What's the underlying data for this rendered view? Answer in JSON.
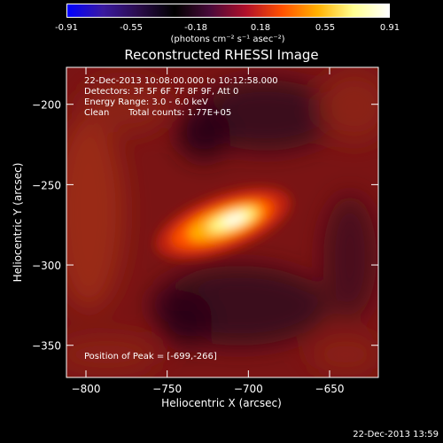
{
  "colorbar": {
    "gradient": [
      "#0000ff",
      "#3a1aa0",
      "#2a0c4a",
      "#000000",
      "#4a0a3a",
      "#b0102a",
      "#ff5000",
      "#ffb000",
      "#ffff90",
      "#ffffff"
    ],
    "ticks": [
      "-0.91",
      "-0.55",
      "-0.18",
      "0.18",
      "0.55",
      "0.91"
    ],
    "units": "(photons cm⁻² s⁻¹ asec⁻²)"
  },
  "chart_data": {
    "type": "heatmap",
    "title": "Reconstructed RHESSI Image",
    "xlabel": "Heliocentric X (arcsec)",
    "ylabel": "Heliocentric Y (arcsec)",
    "xlim": [
      -812,
      -620
    ],
    "ylim": [
      -370,
      -177
    ],
    "xticks": [
      -800,
      -750,
      -700,
      -650
    ],
    "yticks": [
      -200,
      -250,
      -300,
      -350
    ],
    "peak_position": [
      -699,
      -266
    ],
    "annotations": {
      "time": "22-Dec-2013 10:08:00.000 to 10:12:58.000",
      "detectors": "Detectors: 3F 5F 6F 7F 8F 9F, Att 0",
      "energy": "Energy Range: 3.0 - 6.0 keV",
      "method": "Clean",
      "counts": "Total counts: 1.77E+05",
      "peak": "Position of Peak = [-699,-266]"
    }
  },
  "footer": {
    "date": "22-Dec-2013 13:59"
  }
}
